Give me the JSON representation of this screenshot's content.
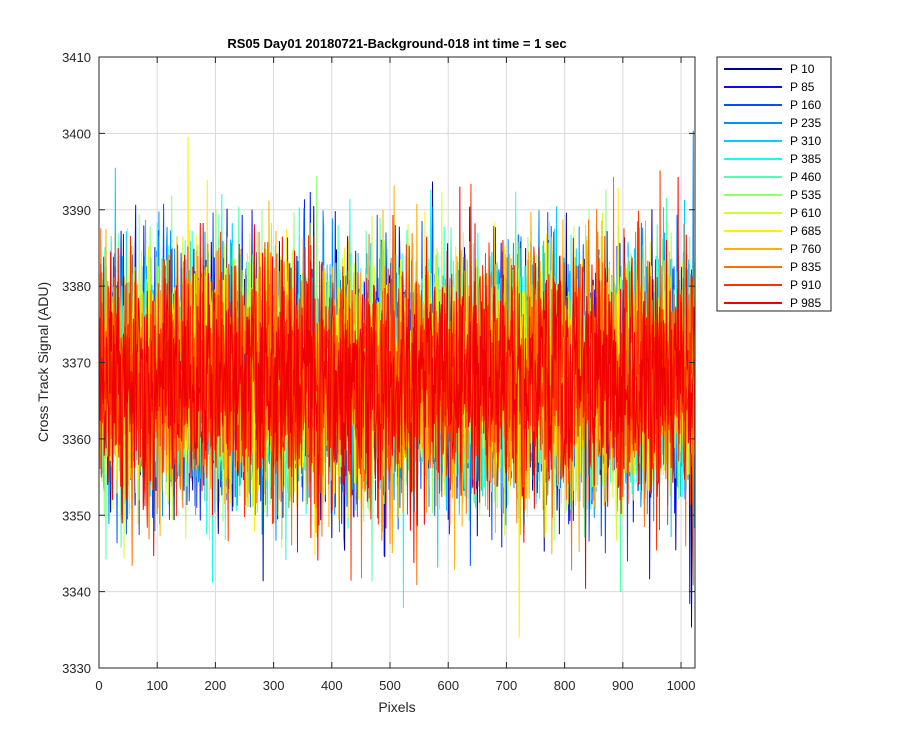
{
  "chart_data": {
    "type": "line",
    "title": "RS05 Day01 20180721-Background-018 int time = 1 sec",
    "xlabel": "Pixels",
    "ylabel": "Cross Track Signal (ADU)",
    "xlim": [
      0,
      1024
    ],
    "ylim": [
      3330,
      3410
    ],
    "xticks": [
      0,
      100,
      200,
      300,
      400,
      500,
      600,
      700,
      800,
      900,
      1000
    ],
    "yticks": [
      3330,
      3340,
      3350,
      3360,
      3370,
      3380,
      3390,
      3400,
      3410
    ],
    "grid": true,
    "legend_position": "outside-top-right",
    "noise_model": {
      "mean": 3368,
      "std": 8,
      "min": 3334,
      "max": 3404,
      "samples": 1024
    },
    "series": [
      {
        "name": "P 10",
        "color": "#00008f"
      },
      {
        "name": "P 85",
        "color": "#0010ff"
      },
      {
        "name": "P 160",
        "color": "#0050ff"
      },
      {
        "name": "P 235",
        "color": "#0090ff"
      },
      {
        "name": "P 310",
        "color": "#00cfff"
      },
      {
        "name": "P 385",
        "color": "#10ffef"
      },
      {
        "name": "P 460",
        "color": "#50ffaf"
      },
      {
        "name": "P 535",
        "color": "#90ff70"
      },
      {
        "name": "P 610",
        "color": "#cfff30"
      },
      {
        "name": "P 685",
        "color": "#ffef00"
      },
      {
        "name": "P 760",
        "color": "#ffb000"
      },
      {
        "name": "P 835",
        "color": "#ff7000"
      },
      {
        "name": "P 910",
        "color": "#ff3000"
      },
      {
        "name": "P 985",
        "color": "#f00000"
      }
    ]
  }
}
